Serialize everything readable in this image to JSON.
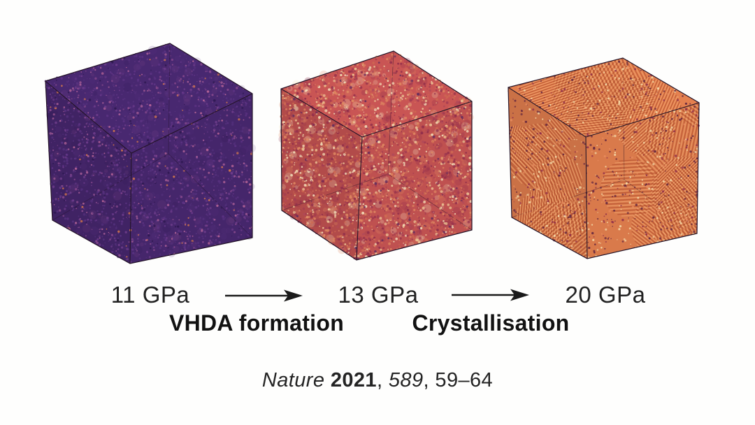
{
  "figure": {
    "background_color": "#fefefd",
    "text_color": "#1d1d1d",
    "cubes": [
      {
        "pressure_label": "11 GPa",
        "base_color": "#45266b",
        "speckle_colors": [
          "#54307c",
          "#5e3485",
          "#6f3d8c",
          "#8a4a8e",
          "#a85e96",
          "#c06a9a",
          "#d97a4b",
          "#2e1850"
        ]
      },
      {
        "pressure_label": "13 GPa",
        "base_color": "#bf5150",
        "speckle_colors": [
          "#8e2c4a",
          "#a23b52",
          "#cf6a52",
          "#e08a62",
          "#eec896",
          "#f4e3bd",
          "#b14a58",
          "#5c2a5e"
        ]
      },
      {
        "pressure_label": "20 GPa",
        "base_color": "#d97a4b",
        "speckle_colors": [
          "#b65431",
          "#f0a56f",
          "#62253f",
          "#f4dcab",
          "#e78b5e",
          "#8e2c4a"
        ]
      }
    ],
    "transitions": [
      {
        "label": "VHDA formation"
      },
      {
        "label": "Crystallisation"
      }
    ],
    "citation": {
      "journal": "Nature",
      "year": "2021",
      "volume": "589",
      "pages": "59–64",
      "sep": ", ",
      "space": " "
    },
    "arrow_color": "#1a1a1a"
  }
}
